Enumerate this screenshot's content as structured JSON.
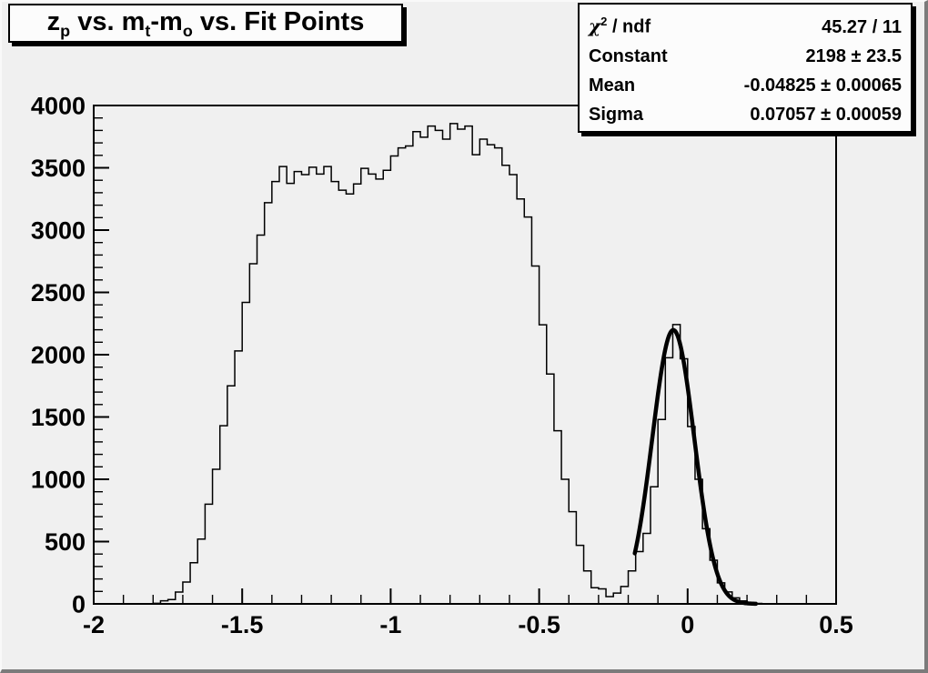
{
  "window": {
    "bg_color": "#f0f0f0",
    "bevel_dark": "#7b7b7b",
    "bevel_light": "#f9f9f9",
    "box_fill": "#fcfcfc",
    "line_color": "#000000"
  },
  "title": {
    "text": "z_p vs. m_t-m_o vs. Fit Points",
    "segments": [
      {
        "text": "z",
        "sub": false
      },
      {
        "text": "p",
        "sub": true
      },
      {
        "text": " vs. m",
        "sub": false
      },
      {
        "text": "t",
        "sub": true
      },
      {
        "text": "-m",
        "sub": false
      },
      {
        "text": "o",
        "sub": true
      },
      {
        "text": " vs. Fit Points",
        "sub": false
      }
    ]
  },
  "stats": {
    "chi_symbol": "χ",
    "chi_exp": "2",
    "rows": [
      {
        "label": "χ² / ndf",
        "label_rest": " / ndf",
        "value": "45.27 / 11"
      },
      {
        "label": "Constant",
        "value": "2198 ± 23.5"
      },
      {
        "label": "Mean",
        "value": "-0.04825 ± 0.00065"
      },
      {
        "label": "Sigma",
        "value": "0.07057 ± 0.00059"
      }
    ]
  },
  "chart_data": {
    "type": "bar",
    "style": "root-step-histogram",
    "title": "z_p vs. m_t-m_o vs. Fit Points",
    "xlabel": "",
    "ylabel": "",
    "xlim": [
      -2,
      0.5
    ],
    "ylim": [
      0,
      4000
    ],
    "grid": false,
    "x_major_ticks": [
      {
        "v": -2,
        "label": "-2"
      },
      {
        "v": -1.5,
        "label": "-1.5"
      },
      {
        "v": -1,
        "label": "-1"
      },
      {
        "v": -0.5,
        "label": "-0.5"
      },
      {
        "v": 0,
        "label": "0"
      },
      {
        "v": 0.5,
        "label": "0.5"
      }
    ],
    "x_minor_step": 0.1,
    "y_major_ticks": [
      {
        "v": 0,
        "label": "0"
      },
      {
        "v": 500,
        "label": "500"
      },
      {
        "v": 1000,
        "label": "1000"
      },
      {
        "v": 1500,
        "label": "1500"
      },
      {
        "v": 2000,
        "label": "2000"
      },
      {
        "v": 2500,
        "label": "2500"
      },
      {
        "v": 3000,
        "label": "3000"
      },
      {
        "v": 3500,
        "label": "3500"
      },
      {
        "v": 4000,
        "label": "4000"
      }
    ],
    "y_minor_step": 100,
    "bin_start": -2,
    "bin_width": 0.025,
    "bins": [
      0,
      0,
      0,
      0,
      0,
      0,
      0,
      0,
      5,
      25,
      35,
      95,
      175,
      330,
      520,
      800,
      1080,
      1430,
      1750,
      2030,
      2420,
      2730,
      2960,
      3220,
      3390,
      3510,
      3375,
      3470,
      3445,
      3505,
      3450,
      3510,
      3390,
      3320,
      3290,
      3370,
      3495,
      3450,
      3410,
      3480,
      3595,
      3660,
      3675,
      3790,
      3745,
      3835,
      3800,
      3730,
      3855,
      3810,
      3835,
      3605,
      3730,
      3685,
      3660,
      3520,
      3445,
      3250,
      3105,
      2712,
      2240,
      1845,
      1390,
      1000,
      740,
      470,
      265,
      130,
      120,
      58,
      87,
      140,
      265,
      420,
      566,
      940,
      1480,
      1975,
      2242,
      1967,
      1423,
      1000,
      603,
      350,
      169,
      96,
      48,
      24,
      10,
      4,
      0,
      0,
      0,
      0,
      0,
      0,
      0,
      0,
      0,
      0
    ],
    "fit_curve": {
      "shape": "gaussian",
      "constant": 2198,
      "mean": -0.04825,
      "sigma": 0.07057,
      "draw_range": [
        -0.178,
        0.23
      ]
    }
  }
}
